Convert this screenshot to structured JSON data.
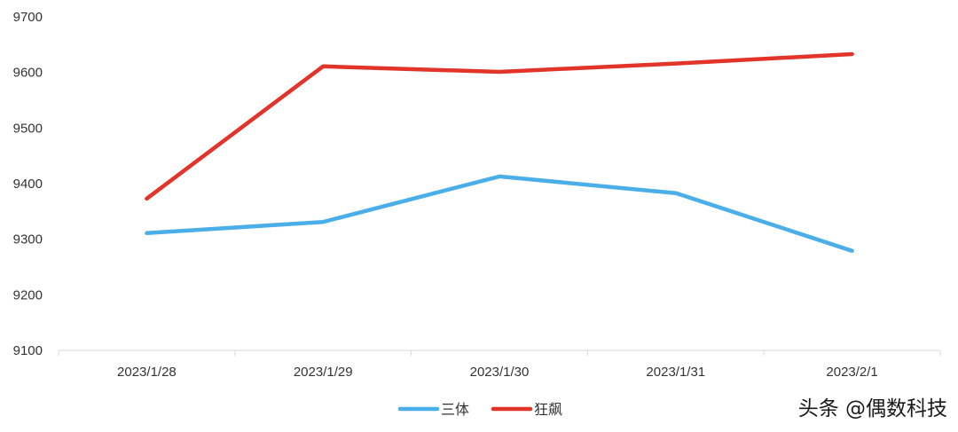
{
  "chart_data": {
    "type": "line",
    "categories": [
      "2023/1/28",
      "2023/1/29",
      "2023/1/30",
      "2023/1/31",
      "2023/2/1"
    ],
    "series": [
      {
        "name": "三体",
        "color": "#4aaee8",
        "values": [
          9311,
          9331,
          9413,
          9383,
          9279
        ]
      },
      {
        "name": "狂飙",
        "color": "#e3342a",
        "values": [
          9373,
          9611,
          9601,
          9616,
          9633
        ]
      }
    ],
    "ylim": [
      9100,
      9700
    ],
    "yticks": [
      "9100",
      "9200",
      "9300",
      "9400",
      "9500",
      "9600",
      "9700"
    ],
    "title": "",
    "xlabel": "",
    "ylabel": "",
    "grid": false,
    "legend_position": "bottom-center"
  },
  "watermark": "头条 @偶数科技"
}
